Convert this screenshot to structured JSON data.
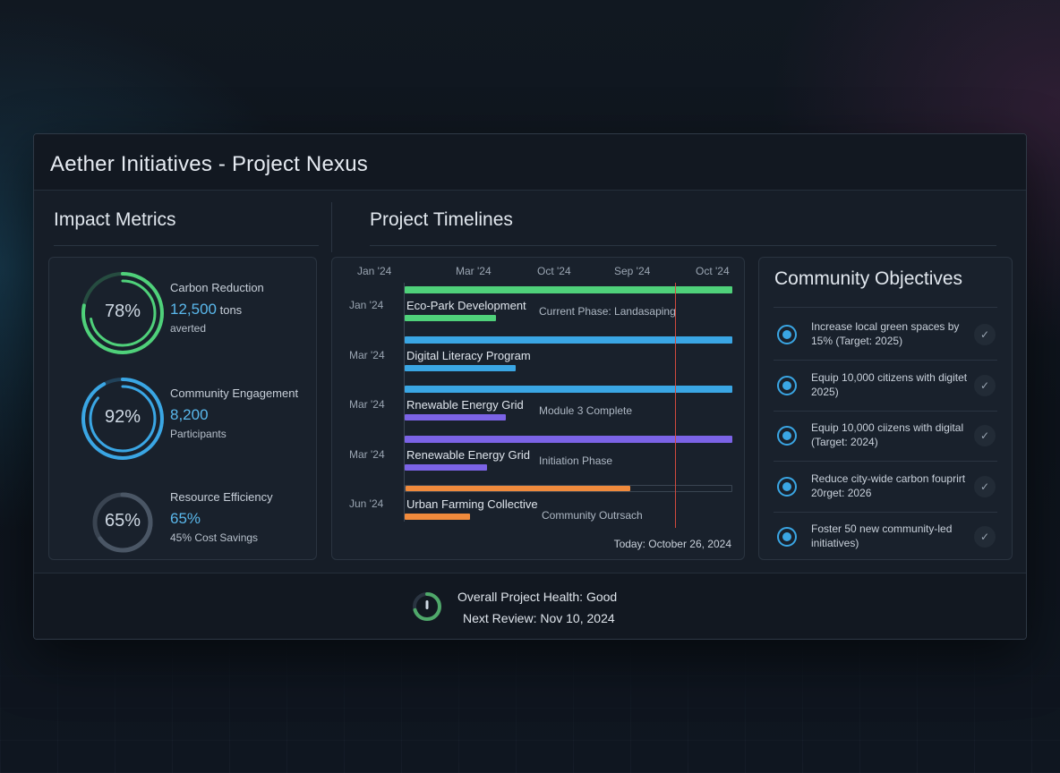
{
  "window": {
    "title": "Aether Initiatives - Project Nexus"
  },
  "impact": {
    "title": "Impact Metrics",
    "metrics": [
      {
        "percent": "78%",
        "progress": 0.78,
        "label": "Carbon Reduction",
        "value": "12,500",
        "unit": "tons",
        "sub": "averted",
        "color": "#4fd17a"
      },
      {
        "percent": "92%",
        "progress": 0.92,
        "label": "Community Engagement",
        "value": "8,200",
        "unit": "",
        "sub": "Participants",
        "color": "#3aa6e4"
      },
      {
        "percent": "65%",
        "progress": 0.65,
        "label": "Resource Efficiency",
        "value": "65%",
        "unit": "",
        "sub": "45% Cost Savings",
        "color": "#4a5665"
      }
    ]
  },
  "timeline": {
    "title": "Project Timelines",
    "header": [
      "Jan '24",
      "Mar '24",
      "Oct '24",
      "Sep '24",
      "Oct '24"
    ],
    "rows": [
      {
        "date": "Jan '24",
        "name": "Eco-Park Development",
        "status": "Current Phase: Landasaping",
        "track": "#4fd17a",
        "track_fill": 1.0,
        "prog": "#4fd17a",
        "prog_fill": 0.28
      },
      {
        "date": "Mar '24",
        "name": "Digital Literacy Program",
        "status": "",
        "track": "#3aa6e4",
        "track_fill": 1.0,
        "prog": "#3aa6e4",
        "prog_fill": 0.34
      },
      {
        "date": "Mar '24",
        "name": "Rnewable Energy Grid",
        "status": "Module 3 Complete",
        "track": "#3aa6e4",
        "track_fill": 1.0,
        "prog": "#7b63e6",
        "prog_fill": 0.31
      },
      {
        "date": "Mar '24",
        "name": "Renewable Energy Grid",
        "status": "Initiation Phase",
        "track": "#7b63e6",
        "track_fill": 1.0,
        "prog": "#7b63e6",
        "prog_fill": 0.25
      },
      {
        "date": "Jun '24",
        "name": "Urban Farming Collective",
        "status": "Community Outrsach",
        "track": "#f08a3c",
        "track_fill": 0.69,
        "prog": "#f08a3c",
        "prog_fill": 0.2
      }
    ],
    "today": "Today: October 26, 2024"
  },
  "objectives": {
    "title": "Community Objectives",
    "items": [
      "Increase local green spaces by 15% (Target: 2025)",
      "Equip 10,000 citizens with digitet 2025)",
      "Equip 10,000 ciizens with digital (Target: 2024)",
      "Reduce city-wide carbon fouprirt 20rget: 2026",
      "Foster 50 new community-led initiatives)"
    ]
  },
  "footer": {
    "health": "Overall Project Health: Good",
    "review": "Next Review:  Nov 10, 2024"
  }
}
